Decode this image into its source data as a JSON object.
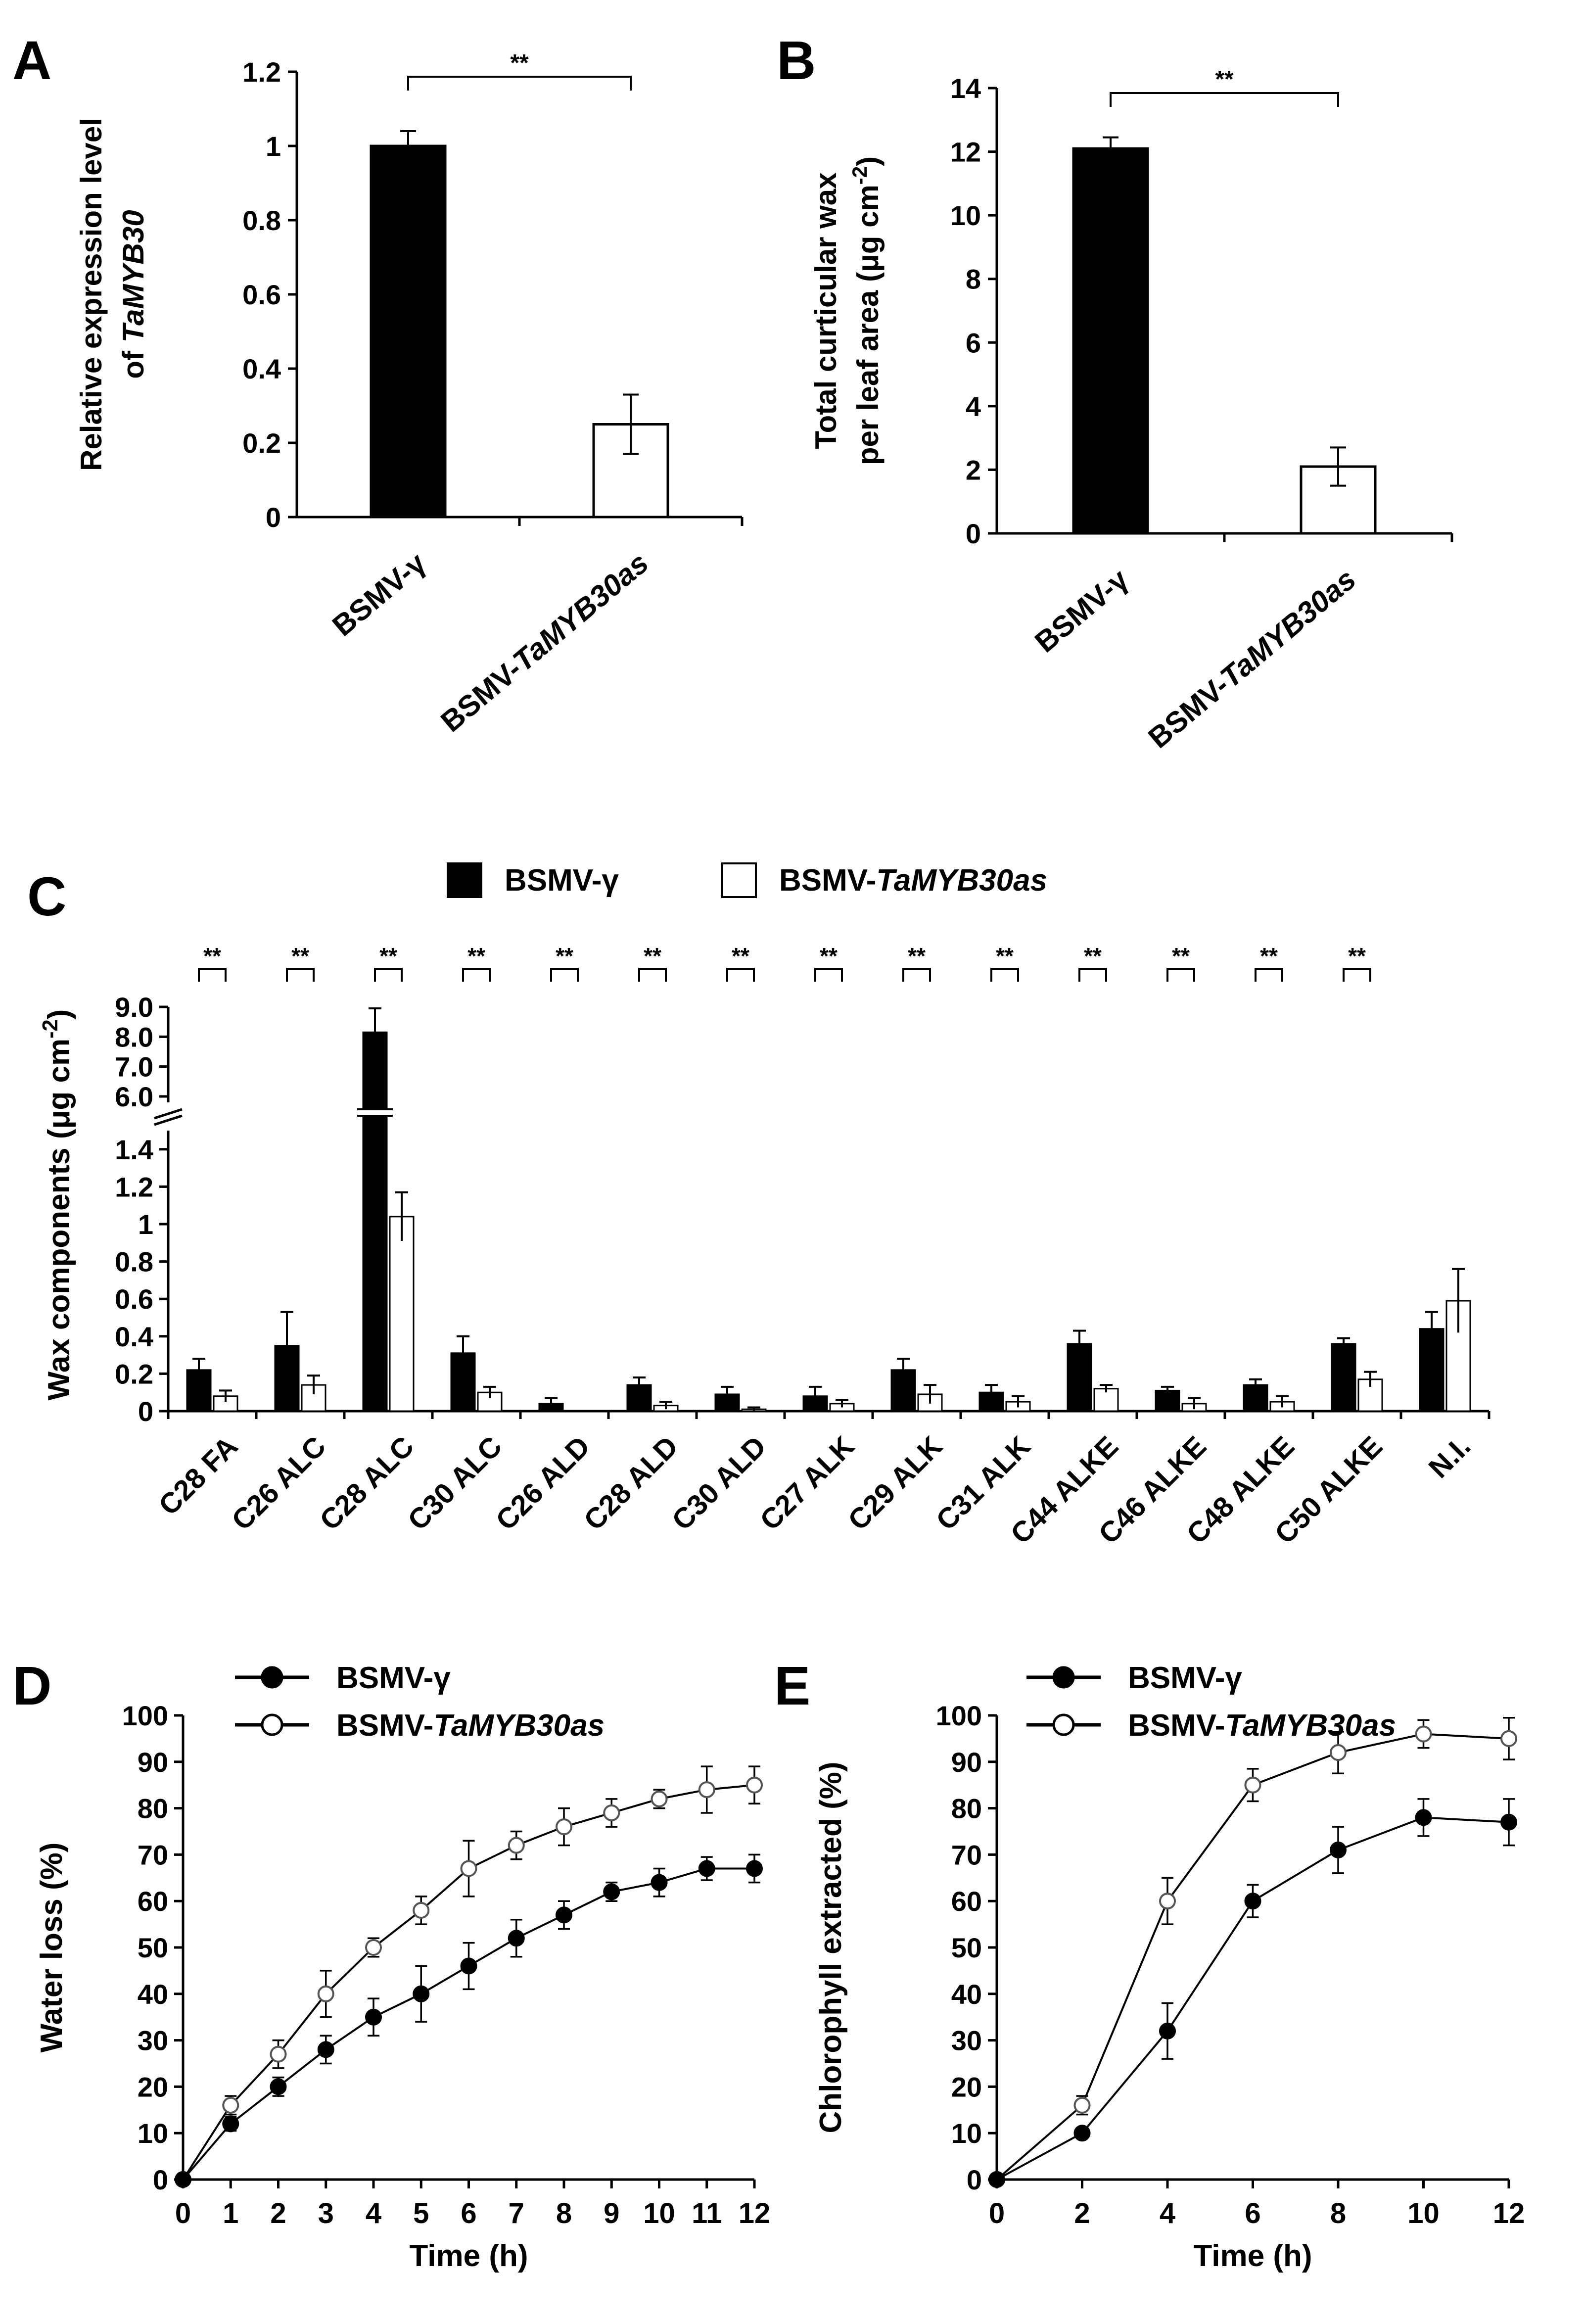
{
  "chart_data": [
    {
      "panel": "A",
      "type": "bar",
      "ylabel_lines": [
        "Relative expression level",
        "of TaMYB30"
      ],
      "ylim": [
        0,
        1.2
      ],
      "ytick_labels": [
        "0",
        "0.2",
        "0.4",
        "0.6",
        "0.8",
        "1",
        "1.2"
      ],
      "categories": [
        "BSMV-γ",
        "BSMV-TaMYB30as"
      ],
      "values": [
        1.0,
        0.25
      ],
      "errors": [
        0.04,
        0.08
      ],
      "fills": [
        "#000000",
        "#ffffff"
      ],
      "significance": "**"
    },
    {
      "panel": "B",
      "type": "bar",
      "ylabel_lines": [
        "Total curticular wax",
        "per leaf area  (μg cm-2)"
      ],
      "ylim": [
        0,
        14
      ],
      "ytick_labels": [
        "0",
        "2",
        "4",
        "6",
        "8",
        "10",
        "12",
        "14"
      ],
      "categories": [
        "BSMV-γ",
        "BSMV-TaMYB30as"
      ],
      "values": [
        12.1,
        2.1
      ],
      "errors": [
        0.35,
        0.6
      ],
      "fills": [
        "#000000",
        "#ffffff"
      ],
      "significance": "**"
    },
    {
      "panel": "C",
      "type": "bar",
      "ylabel": "Wax components (μg cm-2)",
      "ylim_lower": [
        0,
        1.5
      ],
      "ylim_upper": [
        5.8,
        9.0
      ],
      "ytick_labels_lower": [
        "0",
        "0.2",
        "0.4",
        "0.6",
        "0.8",
        "1",
        "1.2",
        "1.4"
      ],
      "ytick_labels_upper": [
        "6.0",
        "7.0",
        "8.0",
        "9.0"
      ],
      "categories": [
        "C28 FA",
        "C26 ALC",
        "C28 ALC",
        "C30 ALC",
        "C26 ALD",
        "C28 ALD",
        "C30 ALD",
        "C27 ALK",
        "C29 ALK",
        "C31 ALK",
        "C44 ALKE",
        "C46 ALKE",
        "C48 ALKE",
        "C50 ALKE",
        "N.I."
      ],
      "series": [
        {
          "name": "BSMV-γ",
          "values": [
            0.22,
            0.35,
            8.15,
            0.31,
            0.04,
            0.14,
            0.09,
            0.08,
            0.22,
            0.1,
            0.36,
            0.11,
            0.14,
            0.36,
            0.44
          ],
          "errors": [
            0.06,
            0.18,
            0.8,
            0.09,
            0.03,
            0.04,
            0.04,
            0.05,
            0.06,
            0.04,
            0.07,
            0.02,
            0.03,
            0.03,
            0.09
          ],
          "fill": "#000000"
        },
        {
          "name": "BSMV-TaMYB30as",
          "values": [
            0.08,
            0.14,
            1.04,
            0.1,
            0.0,
            0.03,
            0.01,
            0.04,
            0.09,
            0.05,
            0.12,
            0.04,
            0.05,
            0.17,
            0.59
          ],
          "errors": [
            0.03,
            0.05,
            0.13,
            0.03,
            0.0,
            0.02,
            0.01,
            0.02,
            0.05,
            0.03,
            0.02,
            0.03,
            0.03,
            0.04,
            0.17
          ],
          "fill": "#ffffff"
        }
      ],
      "significance": [
        "**",
        "**",
        "**",
        "**",
        "**",
        "**",
        "**",
        "**",
        "**",
        "**",
        "**",
        "**",
        "**",
        "**",
        ""
      ],
      "legend_placement": "top"
    },
    {
      "panel": "D",
      "type": "line",
      "xlabel": "Time (h)",
      "ylabel": "Water loss (%)",
      "xlim": [
        0,
        12
      ],
      "ylim": [
        0,
        100
      ],
      "xtick_labels": [
        "0",
        "1",
        "2",
        "3",
        "4",
        "5",
        "6",
        "7",
        "8",
        "9",
        "10",
        "11",
        "12"
      ],
      "ytick_labels": [
        "0",
        "10",
        "20",
        "30",
        "40",
        "50",
        "60",
        "70",
        "80",
        "90",
        "100"
      ],
      "x": [
        0,
        1,
        2,
        3,
        4,
        5,
        6,
        7,
        8,
        9,
        10,
        11,
        12
      ],
      "series": [
        {
          "name": "BSMV-γ",
          "values": [
            0,
            12,
            20,
            28,
            35,
            40,
            46,
            52,
            57,
            62,
            64,
            67,
            67
          ],
          "errors": [
            0,
            1.5,
            2,
            3,
            4,
            6,
            5,
            4,
            3,
            2,
            3,
            2.5,
            3
          ],
          "marker": "filled"
        },
        {
          "name": "BSMV-TaMYB30as",
          "values": [
            0,
            16,
            27,
            40,
            50,
            58,
            67,
            72,
            76,
            79,
            82,
            84,
            85
          ],
          "errors": [
            0,
            2,
            3,
            5,
            2,
            3,
            6,
            3,
            4,
            3,
            2,
            5,
            4
          ],
          "marker": "open"
        }
      ],
      "legend_placement": "top-left"
    },
    {
      "panel": "E",
      "type": "line",
      "xlabel": "Time (h)",
      "ylabel": "Chlorophyll extracted (%)",
      "xlim": [
        0,
        12
      ],
      "ylim": [
        0,
        100
      ],
      "xtick_labels": [
        "0",
        "2",
        "4",
        "6",
        "8",
        "10",
        "12"
      ],
      "ytick_labels": [
        "0",
        "10",
        "20",
        "30",
        "40",
        "50",
        "60",
        "70",
        "80",
        "90",
        "100"
      ],
      "x": [
        0,
        2,
        4,
        6,
        8,
        10,
        12
      ],
      "series": [
        {
          "name": "BSMV-γ",
          "values": [
            0,
            10,
            32,
            60,
            71,
            78,
            77
          ],
          "errors": [
            0,
            1,
            6,
            3.5,
            5,
            4,
            5
          ],
          "marker": "filled"
        },
        {
          "name": "BSMV-TaMYB30as",
          "values": [
            0,
            16,
            60,
            85,
            92,
            96,
            95
          ],
          "errors": [
            0,
            2,
            5,
            3.5,
            4.5,
            3,
            4.5
          ],
          "marker": "open"
        }
      ],
      "legend_placement": "top-left"
    }
  ]
}
